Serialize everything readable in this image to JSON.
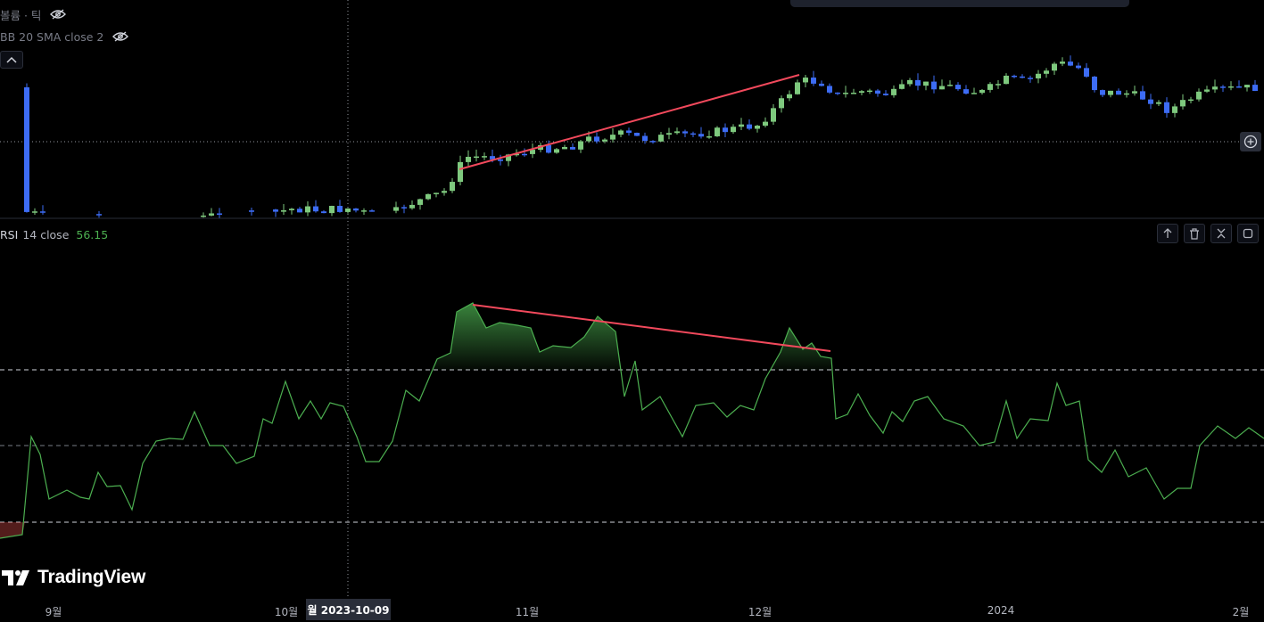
{
  "legend": {
    "volume_label": "볼륨 · 틱",
    "bb_label": "BB 20 SMA close 2"
  },
  "rsi": {
    "label": "RSI",
    "params": "14 close",
    "value": "56.15"
  },
  "icons": {
    "eye_hidden": "eye-hidden-icon",
    "collapse": "chevron-up-icon",
    "move_up": "arrow-up-icon",
    "delete": "trash-icon",
    "maximize": "collapse-arrows-icon",
    "more": "settings-icon",
    "add": "plus-circle-icon"
  },
  "brand": {
    "name": "TradingView"
  },
  "time_axis": {
    "ticks": [
      "9월",
      "10월",
      "11월",
      "12월",
      "2024",
      "2월"
    ],
    "cursor_label": "월 2023-10-09"
  },
  "colors": {
    "up": "#7ec97e",
    "down": "#3d6cf5",
    "rsi_line": "#4caf50",
    "trendline": "#f2495c",
    "background": "#000000"
  }
}
